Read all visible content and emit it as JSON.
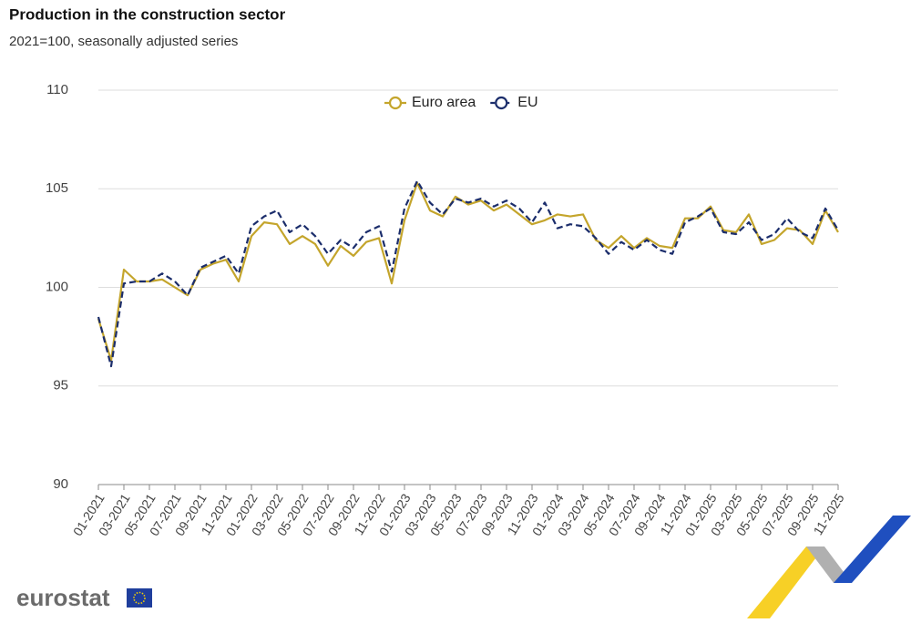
{
  "chart_data": {
    "type": "line",
    "title": "Production in the construction sector",
    "subtitle": "2021=100, seasonally adjusted series",
    "categories": [
      "01-2021",
      null,
      "03-2021",
      null,
      "05-2021",
      null,
      "07-2021",
      null,
      "09-2021",
      null,
      "11-2021",
      null,
      "01-2022",
      null,
      "03-2022",
      null,
      "05-2022",
      null,
      "07-2022",
      null,
      "09-2022",
      null,
      "11-2022",
      null,
      "01-2023",
      null,
      "03-2023",
      null,
      "05-2023",
      null,
      "07-2023",
      null,
      "09-2023",
      null,
      "11-2023",
      null,
      "01-2024",
      null,
      "03-2024",
      null,
      "05-2024",
      null,
      "07-2024",
      null,
      "09-2024",
      null,
      "11-2024",
      null,
      "01-2025",
      null,
      "03-2025",
      null,
      "05-2025",
      null,
      "07-2025",
      null,
      "09-2025",
      null,
      "11-2025"
    ],
    "series": [
      {
        "name": "Euro area",
        "color": "#c4a52c",
        "dashed": false,
        "values": [
          98.4,
          96.3,
          100.9,
          100.3,
          100.3,
          100.4,
          100.0,
          99.6,
          100.9,
          101.2,
          101.4,
          100.3,
          102.6,
          103.3,
          103.2,
          102.2,
          102.6,
          102.2,
          101.1,
          102.1,
          101.6,
          102.3,
          102.5,
          100.2,
          103.4,
          105.3,
          103.9,
          103.6,
          104.6,
          104.2,
          104.4,
          103.9,
          104.2,
          103.7,
          103.2,
          103.4,
          103.7,
          103.6,
          103.7,
          102.4,
          102.0,
          102.6,
          102.0,
          102.5,
          102.1,
          102.0,
          103.5,
          103.5,
          104.1,
          102.9,
          102.8,
          103.7,
          102.2,
          102.4,
          103.0,
          102.9,
          102.2,
          103.9,
          102.8
        ]
      },
      {
        "name": "EU",
        "color": "#1b2d6b",
        "dashed": true,
        "values": [
          98.5,
          96.0,
          100.2,
          100.3,
          100.3,
          100.7,
          100.3,
          99.6,
          101.0,
          101.3,
          101.6,
          100.7,
          103.1,
          103.6,
          103.9,
          102.8,
          103.2,
          102.6,
          101.7,
          102.4,
          102.0,
          102.8,
          103.1,
          100.8,
          104.0,
          105.4,
          104.3,
          103.7,
          104.5,
          104.3,
          104.5,
          104.1,
          104.4,
          104.0,
          103.3,
          104.3,
          103.0,
          103.2,
          103.1,
          102.5,
          101.7,
          102.3,
          101.9,
          102.4,
          101.9,
          101.7,
          103.3,
          103.6,
          104.0,
          102.8,
          102.7,
          103.3,
          102.4,
          102.7,
          103.5,
          102.8,
          102.5,
          104.0,
          102.9
        ]
      }
    ],
    "ylim": [
      90,
      110
    ],
    "yticks": [
      90,
      95,
      100,
      105,
      110
    ],
    "grid": true,
    "legend": "top"
  },
  "logo_text": "eurostat"
}
